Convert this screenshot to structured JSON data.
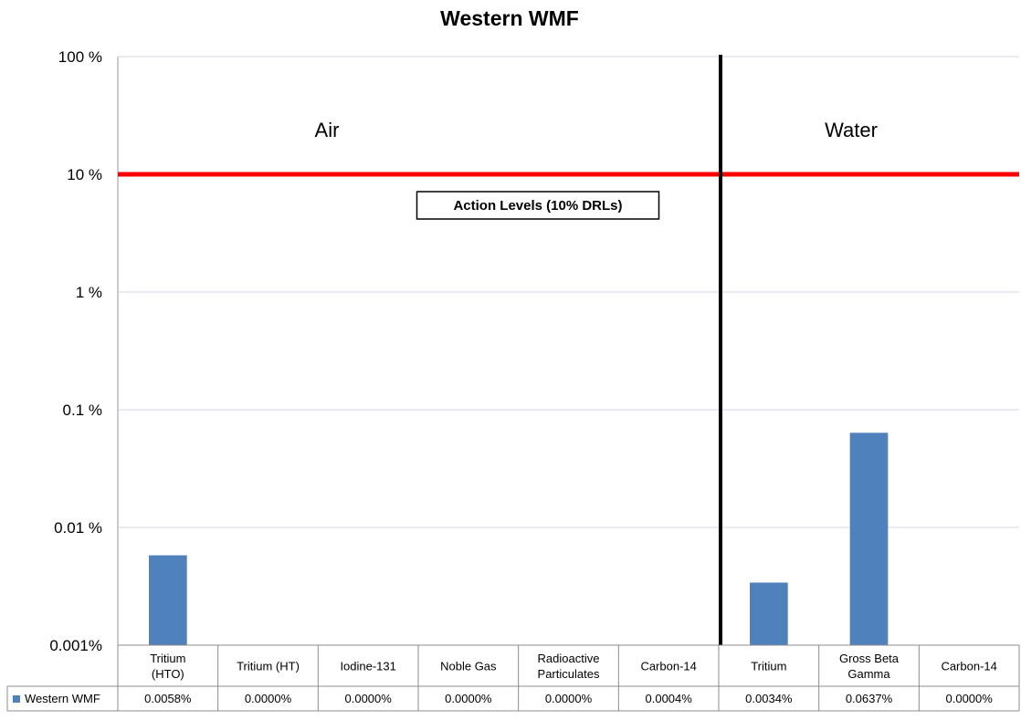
{
  "chart_data": {
    "type": "bar",
    "title": "Western WMF",
    "y_scale": "log",
    "ylim": [
      0.001,
      100
    ],
    "y_ticks": [
      {
        "value": 100,
        "label": "100 %"
      },
      {
        "value": 10,
        "label": "10 %"
      },
      {
        "value": 1,
        "label": "1 %"
      },
      {
        "value": 0.1,
        "label": "0.1 %"
      },
      {
        "value": 0.01,
        "label": "0.01 %"
      },
      {
        "value": 0.001,
        "label": "0.001%"
      }
    ],
    "grid": true,
    "categories": [
      [
        "Tritium",
        "(HTO)"
      ],
      [
        "Tritium (HT)"
      ],
      [
        "Iodine-131"
      ],
      [
        "Noble Gas"
      ],
      [
        "Radioactive",
        "Particulates"
      ],
      [
        "Carbon-14"
      ],
      [
        "Tritium"
      ],
      [
        "Gross Beta",
        "Gamma"
      ],
      [
        "Carbon-14"
      ]
    ],
    "series": [
      {
        "name": "Western WMF",
        "color": "#4f81bd",
        "values": [
          0.0058,
          0.0,
          0.0,
          0.0,
          0.0,
          0.0004,
          0.0034,
          0.0637,
          0.0
        ],
        "value_labels": [
          "0.0058%",
          "0.0000%",
          "0.0000%",
          "0.0000%",
          "0.0000%",
          "0.0004%",
          "0.0034%",
          "0.0637%",
          "0.0000%"
        ]
      }
    ],
    "regions": [
      {
        "label": "Air",
        "first_category": 0,
        "last_category": 5
      },
      {
        "label": "Water",
        "first_category": 6,
        "last_category": 8
      }
    ],
    "divider_after_category": 5,
    "reference_line": {
      "value": 10,
      "color": "#ff0000",
      "label": "Action Levels (10% DRLs)"
    },
    "legend": "data-table"
  }
}
